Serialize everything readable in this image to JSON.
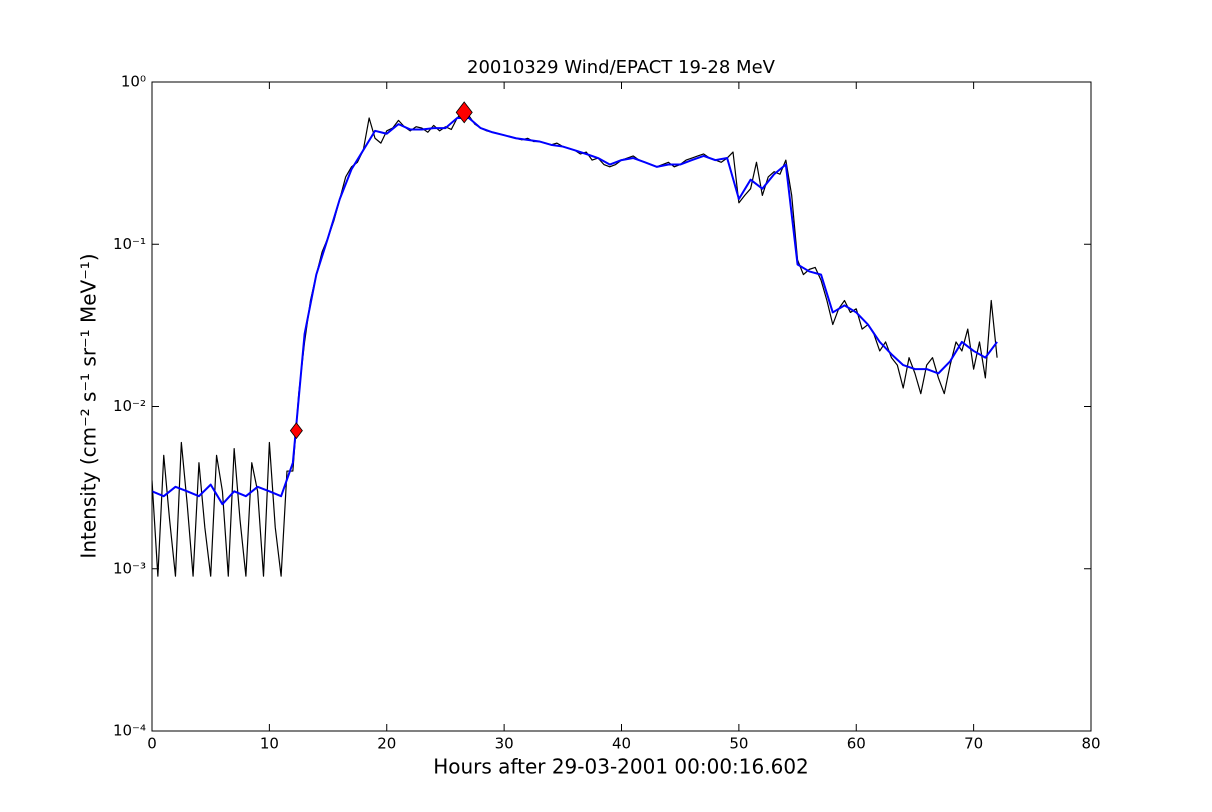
{
  "chart_data": {
    "type": "line",
    "title": "20010329 Wind/EPACT 19-28 MeV",
    "xlabel": "Hours after 29-03-2001 00:00:16.602",
    "ylabel": "Intensity (cm⁻² s⁻¹ sr⁻¹ MeV⁻¹)",
    "xlim": [
      0,
      80
    ],
    "xticks": [
      0,
      10,
      20,
      30,
      40,
      50,
      60,
      70,
      80
    ],
    "ylim": [
      0.0001,
      1
    ],
    "yscale": "log",
    "yticks": [
      {
        "value": 0.0001,
        "label": "10⁻⁴"
      },
      {
        "value": 0.001,
        "label": "10⁻³"
      },
      {
        "value": 0.01,
        "label": "10⁻²"
      },
      {
        "value": 0.1,
        "label": "10⁻¹"
      },
      {
        "value": 1,
        "label": "10⁰"
      }
    ],
    "series": [
      {
        "color": "#000000",
        "marker": "none",
        "x": [
          0,
          0.5,
          1,
          1.5,
          2,
          2.5,
          3,
          3.5,
          4,
          4.5,
          5,
          5.5,
          6,
          6.5,
          7,
          7.5,
          8,
          8.5,
          9,
          9.5,
          10,
          10.5,
          11,
          11.5,
          12,
          12.5,
          13,
          13.5,
          14,
          14.5,
          15,
          15.5,
          16,
          16.5,
          17,
          17.5,
          18,
          18.5,
          19,
          19.5,
          20,
          20.5,
          21,
          21.5,
          22,
          22.5,
          23,
          23.5,
          24,
          24.5,
          25,
          25.5,
          26,
          26.5,
          27,
          27.5,
          28,
          28.5,
          29,
          29.5,
          30,
          30.5,
          31,
          31.5,
          32,
          32.5,
          33,
          33.5,
          34,
          34.5,
          35,
          35.5,
          36,
          36.5,
          37,
          37.5,
          38,
          38.5,
          39,
          39.5,
          40,
          40.5,
          41,
          41.5,
          42,
          42.5,
          43,
          43.5,
          44,
          44.5,
          45,
          45.5,
          46,
          46.5,
          47,
          47.5,
          48,
          48.5,
          49,
          49.5,
          50,
          50.5,
          51,
          51.5,
          52,
          52.5,
          53,
          53.5,
          54,
          54.5,
          55,
          55.5,
          56,
          56.5,
          57,
          57.5,
          58,
          58.5,
          59,
          59.5,
          60,
          60.5,
          61,
          61.5,
          62,
          62.5,
          63,
          63.5,
          64,
          64.5,
          65,
          65.5,
          66,
          66.5,
          67,
          67.5,
          68,
          68.5,
          69,
          69.5,
          70,
          70.5,
          71,
          71.5,
          72
        ],
        "values": [
          0.0035,
          0.0009,
          0.005,
          0.002,
          0.0009,
          0.006,
          0.0025,
          0.0009,
          0.0045,
          0.0018,
          0.0009,
          0.005,
          0.003,
          0.0009,
          0.0055,
          0.002,
          0.0009,
          0.0045,
          0.003,
          0.0009,
          0.006,
          0.0018,
          0.0009,
          0.004,
          0.004,
          0.012,
          0.025,
          0.045,
          0.065,
          0.09,
          0.11,
          0.14,
          0.19,
          0.26,
          0.3,
          0.32,
          0.38,
          0.6,
          0.45,
          0.42,
          0.5,
          0.52,
          0.58,
          0.53,
          0.5,
          0.53,
          0.52,
          0.49,
          0.54,
          0.5,
          0.53,
          0.51,
          0.6,
          0.66,
          0.62,
          0.55,
          0.52,
          0.5,
          0.49,
          0.48,
          0.47,
          0.46,
          0.45,
          0.44,
          0.45,
          0.43,
          0.43,
          0.42,
          0.41,
          0.42,
          0.4,
          0.39,
          0.38,
          0.36,
          0.37,
          0.33,
          0.34,
          0.31,
          0.3,
          0.31,
          0.33,
          0.34,
          0.35,
          0.33,
          0.32,
          0.31,
          0.3,
          0.31,
          0.32,
          0.3,
          0.31,
          0.33,
          0.34,
          0.35,
          0.36,
          0.34,
          0.33,
          0.32,
          0.34,
          0.37,
          0.18,
          0.2,
          0.22,
          0.32,
          0.2,
          0.26,
          0.28,
          0.27,
          0.33,
          0.2,
          0.08,
          0.065,
          0.07,
          0.072,
          0.06,
          0.045,
          0.032,
          0.04,
          0.045,
          0.038,
          0.04,
          0.03,
          0.032,
          0.028,
          0.022,
          0.025,
          0.02,
          0.018,
          0.013,
          0.02,
          0.016,
          0.012,
          0.018,
          0.02,
          0.015,
          0.012,
          0.018,
          0.025,
          0.022,
          0.03,
          0.017,
          0.025,
          0.015,
          0.045,
          0.02
        ]
      },
      {
        "color": "#0000ff",
        "marker": "none",
        "x": [
          0,
          1,
          2,
          3,
          4,
          5,
          6,
          7,
          8,
          9,
          10,
          11,
          12,
          13,
          14,
          15,
          16,
          17,
          18,
          19,
          20,
          21,
          22,
          23,
          24,
          25,
          26,
          27,
          28,
          29,
          30,
          31,
          32,
          33,
          34,
          35,
          36,
          37,
          38,
          39,
          40,
          41,
          42,
          43,
          44,
          45,
          46,
          47,
          48,
          49,
          50,
          51,
          52,
          53,
          54,
          55,
          56,
          57,
          58,
          59,
          60,
          61,
          62,
          63,
          64,
          65,
          66,
          67,
          68,
          69,
          70,
          71,
          72
        ],
        "values": [
          0.003,
          0.0028,
          0.0032,
          0.003,
          0.0028,
          0.0033,
          0.0025,
          0.003,
          0.0028,
          0.0032,
          0.003,
          0.0028,
          0.0045,
          0.028,
          0.065,
          0.11,
          0.19,
          0.29,
          0.38,
          0.5,
          0.48,
          0.55,
          0.51,
          0.51,
          0.52,
          0.52,
          0.6,
          0.6,
          0.52,
          0.49,
          0.47,
          0.45,
          0.44,
          0.43,
          0.41,
          0.4,
          0.38,
          0.36,
          0.34,
          0.31,
          0.33,
          0.34,
          0.32,
          0.3,
          0.31,
          0.31,
          0.33,
          0.35,
          0.33,
          0.34,
          0.19,
          0.25,
          0.22,
          0.27,
          0.31,
          0.075,
          0.068,
          0.065,
          0.038,
          0.042,
          0.038,
          0.032,
          0.025,
          0.021,
          0.018,
          0.017,
          0.017,
          0.016,
          0.019,
          0.025,
          0.022,
          0.02,
          0.025
        ]
      },
      {
        "color": "#ff0000",
        "marker": "diamond",
        "x": [
          12.3,
          26.6
        ],
        "values": [
          0.0071,
          0.65
        ]
      }
    ]
  }
}
